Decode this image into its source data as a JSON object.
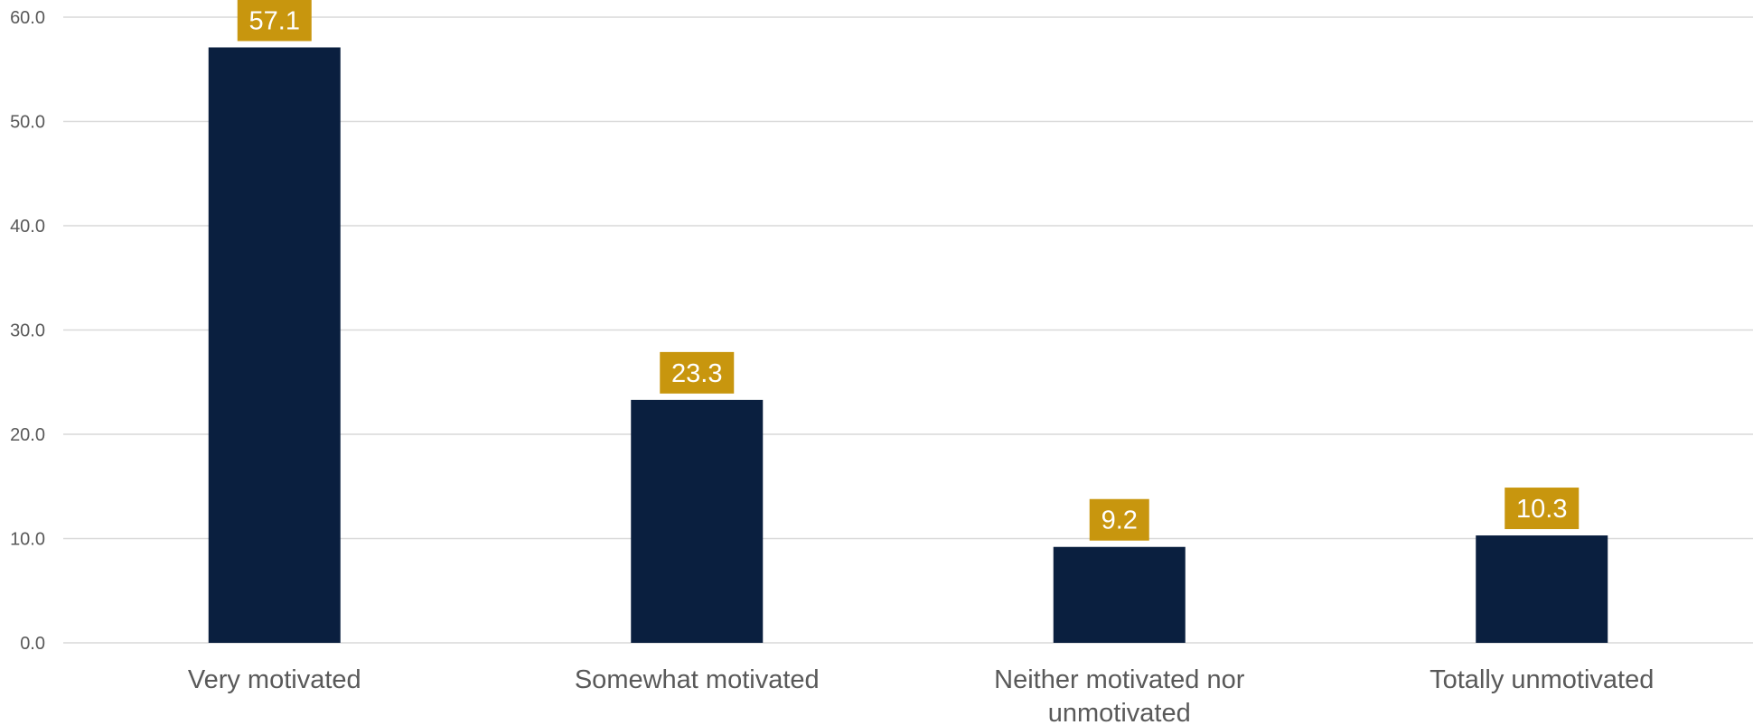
{
  "chart_data": {
    "type": "bar",
    "categories": [
      [
        "Very motivated"
      ],
      [
        "Somewhat motivated"
      ],
      [
        "Neither motivated nor",
        "unmotivated"
      ],
      [
        "Totally unmotivated"
      ]
    ],
    "values": [
      57.1,
      23.3,
      9.2,
      10.3
    ],
    "data_labels": [
      "57.1",
      "23.3",
      "9.2",
      "10.3"
    ],
    "yticks": [
      "0.0",
      "10.0",
      "20.0",
      "30.0",
      "40.0",
      "50.0",
      "60.0"
    ],
    "ylim": [
      0,
      60
    ],
    "grid": true,
    "legend": "none",
    "colors": {
      "bar": "#0a1f3f",
      "label_box": "#c8960e",
      "label_text": "#ffffff",
      "grid": "#d9d9d9",
      "tick_text": "#595959"
    }
  }
}
